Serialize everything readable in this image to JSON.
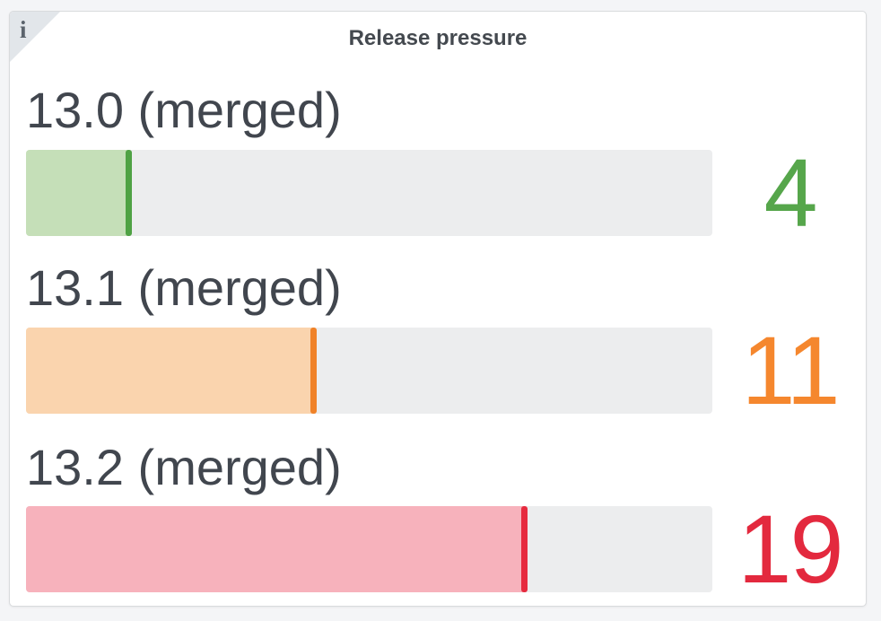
{
  "panel": {
    "title": "Release pressure",
    "info_icon_glyph": "i"
  },
  "colors": {
    "outer_background": "#F4F5F7",
    "panel_background": "#FFFFFF",
    "panel_border": "#D9DBDD",
    "track": "#ECEDEE",
    "title_text": "#44494F",
    "label_text": "#41464E",
    "info_corner": "#E2E6EA",
    "green": "#56A64B",
    "orange": "#F5872E",
    "red": "#E3293E"
  },
  "chart_data": {
    "type": "bar",
    "orientation": "horizontal",
    "title": "Release pressure",
    "categories": [
      "13.0 (merged)",
      "13.1 (merged)",
      "13.2 (merged)"
    ],
    "values": [
      4,
      11,
      19
    ],
    "xlim": [
      0,
      26
    ],
    "grid": false,
    "legend": false,
    "rows": [
      {
        "label": "13.0 (merged)",
        "value": 4,
        "display_value": "4",
        "fill_color": "#C5DFB8",
        "edge_color": "#4FA244",
        "value_color": "#56A64B"
      },
      {
        "label": "13.1 (merged)",
        "value": 11,
        "display_value": "11",
        "fill_color": "#FAD4AE",
        "edge_color": "#F08228",
        "value_color": "#F5872E"
      },
      {
        "label": "13.2 (merged)",
        "value": 19,
        "display_value": "19",
        "fill_color": "#F7B2BC",
        "edge_color": "#E62B3F",
        "value_color": "#E3293E"
      }
    ]
  }
}
